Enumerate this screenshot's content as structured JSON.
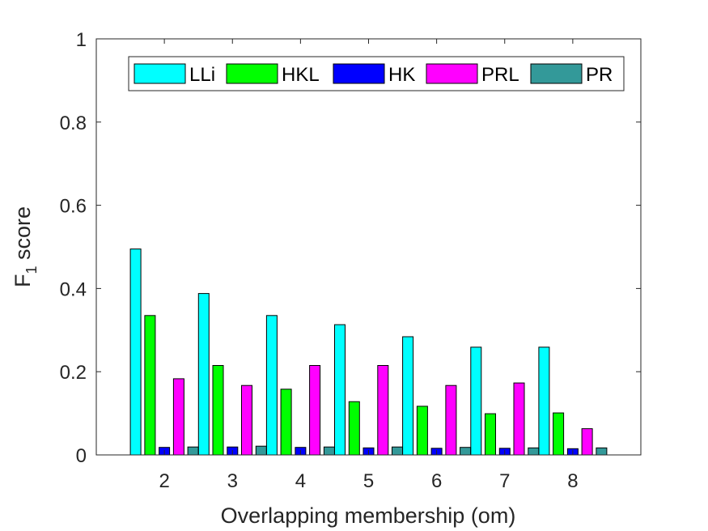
{
  "chart_data": {
    "type": "bar",
    "title": "",
    "xlabel": "Overlapping membership (om)",
    "ylabel_main": "F",
    "ylabel_sub": "1",
    "ylabel_rest": "score",
    "ylim": [
      0,
      1
    ],
    "yticks": [
      0,
      0.2,
      0.4,
      0.6,
      0.8,
      1
    ],
    "ytick_labels": [
      "0",
      "0.2",
      "0.4",
      "0.6",
      "0.8",
      "1"
    ],
    "categories": [
      "2",
      "3",
      "4",
      "5",
      "6",
      "7",
      "8"
    ],
    "legend_position": "top",
    "series": [
      {
        "name": "LLi",
        "color": "#00ffff",
        "values": [
          0.495,
          0.388,
          0.335,
          0.313,
          0.284,
          0.259,
          0.259
        ]
      },
      {
        "name": "HKL",
        "color": "#00ff00",
        "values": [
          0.335,
          0.215,
          0.158,
          0.128,
          0.117,
          0.099,
          0.101
        ]
      },
      {
        "name": "HK",
        "color": "#0000ff",
        "values": [
          0.018,
          0.019,
          0.018,
          0.017,
          0.016,
          0.016,
          0.015
        ]
      },
      {
        "name": "PRL",
        "color": "#ff00ff",
        "values": [
          0.183,
          0.167,
          0.215,
          0.215,
          0.167,
          0.173,
          0.063
        ]
      },
      {
        "name": "PR",
        "color": "#339999",
        "values": [
          0.019,
          0.021,
          0.019,
          0.019,
          0.018,
          0.017,
          0.017
        ]
      }
    ]
  }
}
